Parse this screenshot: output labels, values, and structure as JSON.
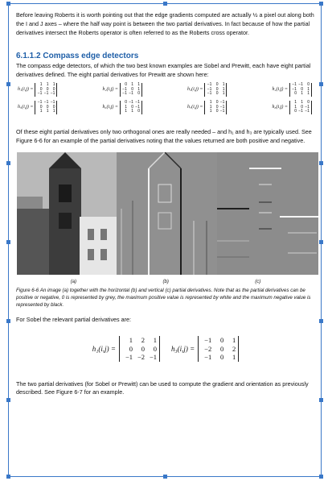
{
  "intro": "Before leaving Roberts it is worth pointing out that the edge gradients computed are actually ½ a pixel out along both the I and J axes – where the half way point is between the two partial derivatives.  In fact because of how the partial derivatives intersect the Roberts operator is often referred to as the Roberts cross operator.",
  "section": {
    "number": "6.1.1.2",
    "title": "Compass edge detectors",
    "para1": "The compass edge detectors, of which the two best known examples are Sobel and Prewitt, each have eight partial derivatives defined.  The eight partial derivatives for Prewitt are shown here:"
  },
  "prewitt": [
    {
      "label": "h₁(i,j) =",
      "m": [
        "1",
        "1",
        "1",
        "0",
        "0",
        "0",
        "−1",
        "−1",
        "−1"
      ]
    },
    {
      "label": "h₂(i,j) =",
      "m": [
        "0",
        "1",
        "1",
        "−1",
        "0",
        "1",
        "−1",
        "−1",
        "0"
      ]
    },
    {
      "label": "h₃(i,j) =",
      "m": [
        "−1",
        "0",
        "1",
        "−1",
        "0",
        "1",
        "−1",
        "0",
        "1"
      ]
    },
    {
      "label": "h₄(i,j) =",
      "m": [
        "−1",
        "−1",
        "0",
        "−1",
        "0",
        "1",
        "0",
        "1",
        "1"
      ]
    },
    {
      "label": "h₅(i,j) =",
      "m": [
        "−1",
        "−1",
        "−1",
        "0",
        "0",
        "0",
        "1",
        "1",
        "1"
      ]
    },
    {
      "label": "h₆(i,j) =",
      "m": [
        "0",
        "−1",
        "−1",
        "1",
        "0",
        "−1",
        "1",
        "1",
        "0"
      ]
    },
    {
      "label": "h₇(i,j) =",
      "m": [
        "1",
        "0",
        "−1",
        "1",
        "0",
        "−1",
        "1",
        "0",
        "−1"
      ]
    },
    {
      "label": "h₈(i,j) =",
      "m": [
        "1",
        "1",
        "0",
        "1",
        "0",
        "−1",
        "0",
        "−1",
        "−1"
      ]
    }
  ],
  "para2": "Of these eight partial derivatives only two orthogonal ones are really needed – and h₁ and h₃ are typically used.  See Figure 6-6 for an example of the partial derivatives noting that the values returned are both positive and negative.",
  "figure": {
    "labels": [
      "(a)",
      "(b)",
      "(c)"
    ],
    "caption": "Figure 6-6  An image (a) together with the horizontal (b) and vertical (c) partial derivatives.  Note that as the partial derivatives can be positive or negative, 0 is represented by grey, the maximum positive value is represented by white and the maximum negative value is represented by black."
  },
  "sobel_intro": "For Sobel the relevant partial derivatives are:",
  "sobel": [
    {
      "label": "h₁(i,j) =",
      "m": [
        "1",
        "2",
        "1",
        "0",
        "0",
        "0",
        "−1",
        "−2",
        "−1"
      ]
    },
    {
      "label": "h₃(i,j) =",
      "m": [
        "−1",
        "0",
        "1",
        "−2",
        "0",
        "2",
        "−1",
        "0",
        "1"
      ]
    }
  ],
  "last": "The two partial derivatives (for Sobel or Prewitt) can be used to compute the gradient and orientation as previously described.  See Figure 6-7 for an example.",
  "colors": {
    "frame": "#3a78c8",
    "heading": "#1f5fa8"
  }
}
